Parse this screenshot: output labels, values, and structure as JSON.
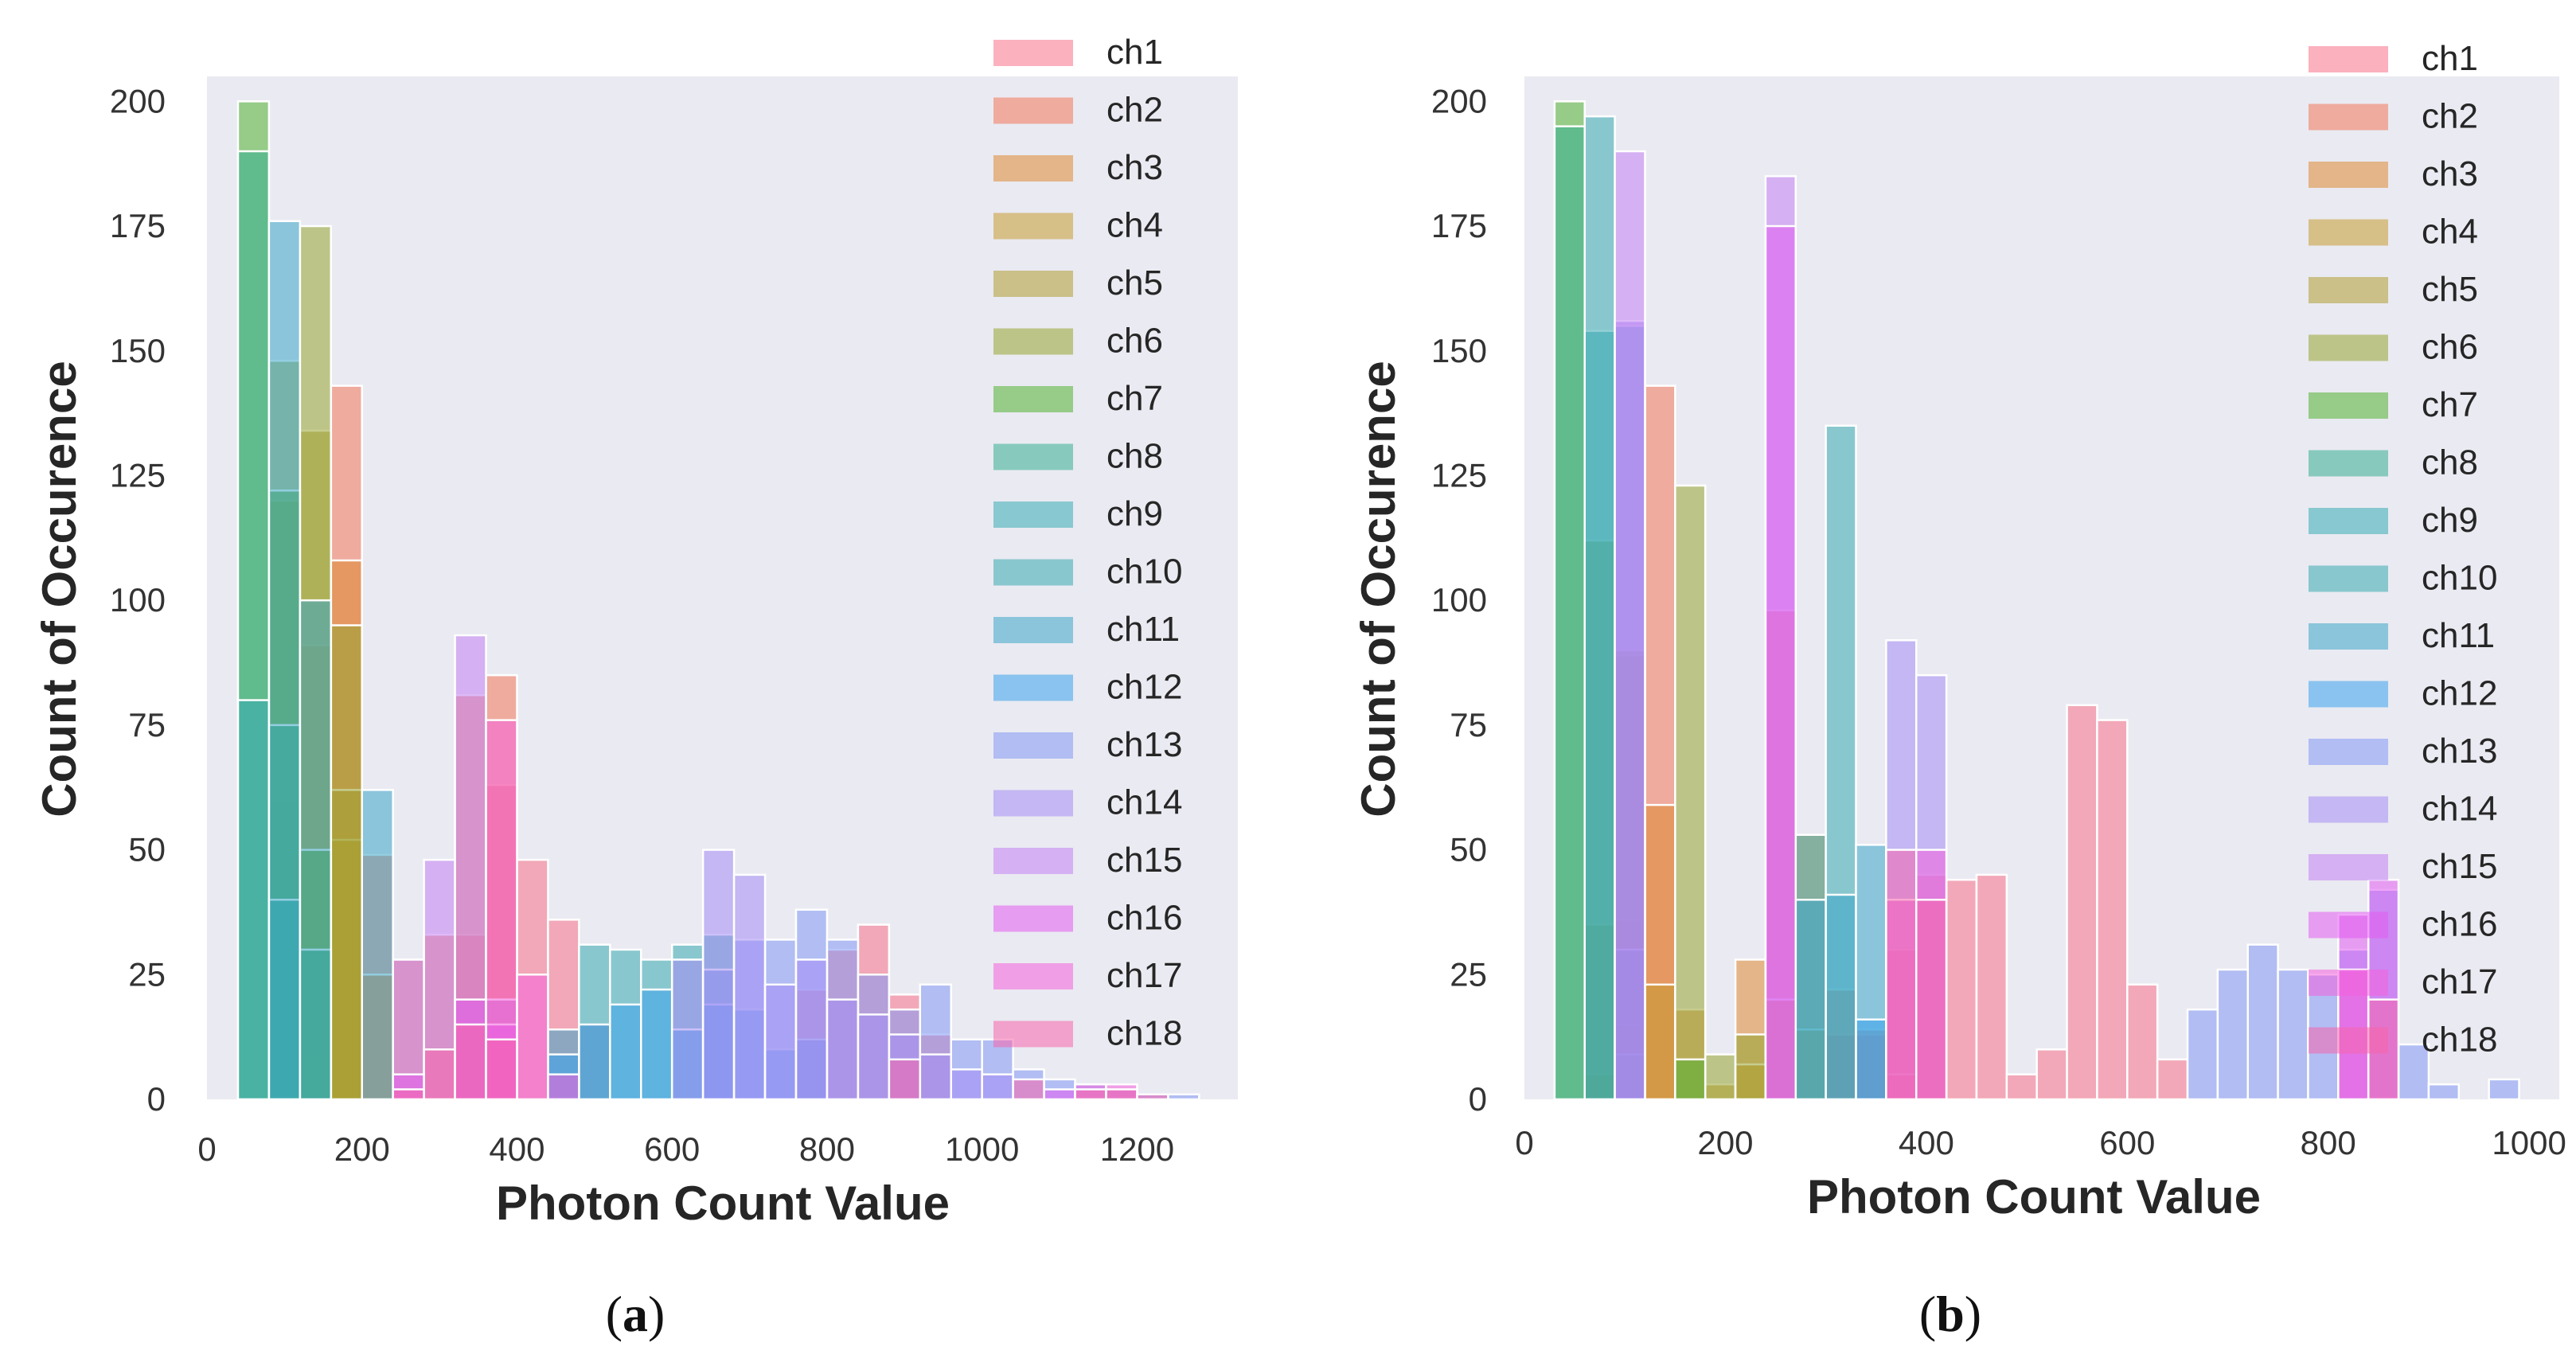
{
  "figure": {
    "panels": [
      {
        "caption_open": "(",
        "caption_letter": "a",
        "caption_close": ")"
      },
      {
        "caption_open": "(",
        "caption_letter": "b",
        "caption_close": ")"
      }
    ]
  },
  "colors": {
    "plot_background": "#eaeaf2",
    "channels": [
      "#f77189",
      "#f2775a",
      "#dc8932",
      "#c69b32",
      "#ae9d31",
      "#97a431",
      "#50b131",
      "#34ae91",
      "#37abb4",
      "#39a9b1",
      "#3aa5c8",
      "#3ba3ec",
      "#8197f4",
      "#a48cf4",
      "#c27ff3",
      "#e15bf0",
      "#f461dd",
      "#f565ab"
    ]
  },
  "chart_data": [
    {
      "type": "histogram",
      "panel": "a",
      "xlabel": "Photon Count Value",
      "ylabel": "Count of Occurence",
      "xlim": [
        0,
        1330
      ],
      "ylim": [
        0,
        205
      ],
      "xticks": [
        0,
        200,
        400,
        600,
        800,
        1000,
        1200
      ],
      "yticks": [
        0,
        25,
        50,
        75,
        100,
        125,
        150,
        175,
        200
      ],
      "bin_width": 40,
      "legend_position": "top-right",
      "grid": false,
      "series": [
        {
          "name": "ch1",
          "bins": [
            [
              320,
              33
            ],
            [
              360,
              63
            ],
            [
              400,
              48
            ],
            [
              440,
              36
            ],
            [
              480,
              15
            ],
            [
              760,
              22
            ],
            [
              800,
              30
            ],
            [
              840,
              35
            ],
            [
              880,
              21
            ],
            [
              920,
              13
            ]
          ]
        },
        {
          "name": "ch2",
          "bins": [
            [
              160,
              143
            ],
            [
              200,
              49
            ],
            [
              240,
              28
            ],
            [
              280,
              33
            ],
            [
              320,
              81
            ],
            [
              360,
              85
            ]
          ]
        },
        {
          "name": "ch3",
          "bins": [
            [
              120,
              9
            ],
            [
              160,
              108
            ],
            [
              200,
              25
            ]
          ]
        },
        {
          "name": "ch4",
          "bins": [
            [
              80,
              60
            ],
            [
              120,
              91
            ],
            [
              160,
              52
            ]
          ]
        },
        {
          "name": "ch5",
          "bins": [
            [
              80,
              120
            ],
            [
              120,
              134
            ],
            [
              160,
              62
            ]
          ]
        },
        {
          "name": "ch6",
          "bins": [
            [
              80,
              148
            ],
            [
              120,
              175
            ],
            [
              160,
              95
            ]
          ]
        },
        {
          "name": "ch7",
          "bins": [
            [
              40,
              200
            ],
            [
              80,
              122
            ],
            [
              120,
              50
            ]
          ]
        },
        {
          "name": "ch8",
          "bins": [
            [
              40,
              190
            ],
            [
              80,
              75
            ],
            [
              120,
              30
            ]
          ]
        },
        {
          "name": "ch9",
          "bins": [
            [
              40,
              80
            ],
            [
              80,
              40
            ]
          ]
        },
        {
          "name": "ch10",
          "bins": [
            [
              480,
              31
            ],
            [
              520,
              30
            ],
            [
              560,
              28
            ],
            [
              600,
              31
            ],
            [
              640,
              33
            ]
          ]
        },
        {
          "name": "ch11",
          "bins": [
            [
              80,
              176
            ],
            [
              120,
              100
            ],
            [
              200,
              62
            ],
            [
              440,
              14
            ]
          ]
        },
        {
          "name": "ch12",
          "bins": [
            [
              440,
              9
            ],
            [
              480,
              15
            ],
            [
              520,
              19
            ],
            [
              560,
              22
            ],
            [
              600,
              14
            ],
            [
              640,
              19
            ],
            [
              680,
              18
            ],
            [
              720,
              10
            ],
            [
              760,
              12
            ]
          ]
        },
        {
          "name": "ch13",
          "bins": [
            [
              640,
              26
            ],
            [
              680,
              32
            ],
            [
              720,
              32
            ],
            [
              760,
              38
            ],
            [
              800,
              32
            ],
            [
              840,
              25
            ],
            [
              880,
              18
            ],
            [
              920,
              23
            ],
            [
              960,
              12
            ],
            [
              1000,
              12
            ],
            [
              1040,
              6
            ],
            [
              1080,
              4
            ],
            [
              1120,
              3
            ],
            [
              1160,
              2
            ],
            [
              1200,
              1
            ],
            [
              1240,
              1
            ]
          ]
        },
        {
          "name": "ch14",
          "bins": [
            [
              600,
              28
            ],
            [
              640,
              50
            ],
            [
              680,
              45
            ],
            [
              720,
              23
            ],
            [
              760,
              28
            ],
            [
              800,
              20
            ],
            [
              840,
              17
            ],
            [
              880,
              13
            ],
            [
              920,
              9
            ],
            [
              960,
              6
            ],
            [
              1000,
              5
            ]
          ]
        },
        {
          "name": "ch15",
          "bins": [
            [
              240,
              28
            ],
            [
              280,
              48
            ],
            [
              320,
              93
            ],
            [
              360,
              20
            ]
          ]
        },
        {
          "name": "ch16",
          "bins": [
            [
              240,
              5
            ],
            [
              320,
              20
            ],
            [
              360,
              15
            ],
            [
              1080,
              2
            ]
          ]
        },
        {
          "name": "ch17",
          "bins": [
            [
              360,
              76
            ],
            [
              400,
              25
            ],
            [
              440,
              5
            ],
            [
              1120,
              3
            ],
            [
              1160,
              3
            ]
          ]
        },
        {
          "name": "ch18",
          "bins": [
            [
              240,
              2
            ],
            [
              280,
              10
            ],
            [
              320,
              15
            ],
            [
              360,
              12
            ],
            [
              880,
              8
            ],
            [
              1040,
              4
            ],
            [
              1120,
              2
            ],
            [
              1160,
              2
            ],
            [
              1200,
              1
            ]
          ]
        }
      ],
      "legend": [
        "ch1",
        "ch2",
        "ch3",
        "ch4",
        "ch5",
        "ch6",
        "ch7",
        "ch8",
        "ch9",
        "ch10",
        "ch11",
        "ch12",
        "ch13",
        "ch14",
        "ch15",
        "ch16",
        "ch17",
        "ch18"
      ]
    },
    {
      "type": "histogram",
      "panel": "b",
      "xlabel": "Photon Count Value",
      "ylabel": "Count of Occurence",
      "xlim": [
        0,
        1030
      ],
      "ylim": [
        0,
        205
      ],
      "xticks": [
        0,
        200,
        400,
        600,
        800,
        1000
      ],
      "yticks": [
        0,
        25,
        50,
        75,
        100,
        125,
        150,
        175,
        200
      ],
      "bin_width": 30,
      "legend_position": "top-right",
      "grid": false,
      "series": [
        {
          "name": "ch1",
          "bins": [
            [
              300,
              13
            ],
            [
              330,
              13
            ],
            [
              360,
              30
            ],
            [
              390,
              45
            ],
            [
              420,
              44
            ],
            [
              450,
              45
            ],
            [
              480,
              5
            ],
            [
              510,
              10
            ],
            [
              540,
              79
            ],
            [
              570,
              76
            ],
            [
              600,
              23
            ],
            [
              630,
              8
            ]
          ]
        },
        {
          "name": "ch2",
          "bins": [
            [
              90,
              36
            ],
            [
              120,
              143
            ],
            [
              240,
              98
            ],
            [
              300,
              22
            ],
            [
              330,
              14
            ],
            [
              360,
              5
            ]
          ]
        },
        {
          "name": "ch3",
          "bins": [
            [
              120,
              59
            ],
            [
              150,
              18
            ],
            [
              210,
              28
            ],
            [
              240,
              20
            ],
            [
              270,
              53
            ]
          ]
        },
        {
          "name": "ch4",
          "bins": [
            [
              60,
              5
            ],
            [
              90,
              15
            ],
            [
              120,
              23
            ],
            [
              180,
              3
            ],
            [
              210,
              7
            ],
            [
              270,
              14
            ]
          ]
        },
        {
          "name": "ch5",
          "bins": [
            [
              60,
              35
            ],
            [
              90,
              89
            ]
          ]
        },
        {
          "name": "ch6",
          "bins": [
            [
              60,
              112
            ],
            [
              90,
              90
            ],
            [
              150,
              123
            ],
            [
              180,
              9
            ],
            [
              210,
              13
            ]
          ]
        },
        {
          "name": "ch7",
          "bins": [
            [
              30,
              200
            ],
            [
              150,
              8
            ]
          ]
        },
        {
          "name": "ch8",
          "bins": [
            [
              30,
              195
            ],
            [
              90,
              9
            ]
          ]
        },
        {
          "name": "ch9",
          "bins": [
            [
              60,
              154
            ],
            [
              90,
              30
            ]
          ]
        },
        {
          "name": "ch10",
          "bins": [
            [
              60,
              197
            ],
            [
              270,
              53
            ],
            [
              300,
              135
            ]
          ]
        },
        {
          "name": "ch11",
          "bins": [
            [
              90,
              155
            ],
            [
              270,
              40
            ],
            [
              300,
              41
            ],
            [
              330,
              51
            ]
          ]
        },
        {
          "name": "ch12",
          "bins": [
            [
              330,
              16
            ]
          ]
        },
        {
          "name": "ch13",
          "bins": [
            [
              660,
              18
            ],
            [
              690,
              26
            ],
            [
              720,
              31
            ],
            [
              750,
              26
            ],
            [
              780,
              25
            ],
            [
              810,
              30
            ],
            [
              840,
              42
            ],
            [
              870,
              11
            ],
            [
              900,
              3
            ],
            [
              960,
              4
            ]
          ]
        },
        {
          "name": "ch14",
          "bins": [
            [
              90,
              156
            ],
            [
              360,
              92
            ],
            [
              390,
              85
            ]
          ]
        },
        {
          "name": "ch15",
          "bins": [
            [
              90,
              190
            ],
            [
              240,
              185
            ]
          ]
        },
        {
          "name": "ch16",
          "bins": [
            [
              240,
              175
            ],
            [
              810,
              37
            ],
            [
              840,
              44
            ]
          ]
        },
        {
          "name": "ch17",
          "bins": [
            [
              360,
              40
            ],
            [
              390,
              50
            ],
            [
              810,
              26
            ]
          ]
        },
        {
          "name": "ch18",
          "bins": [
            [
              360,
              50
            ],
            [
              390,
              40
            ],
            [
              840,
              20
            ]
          ]
        }
      ],
      "legend": [
        "ch1",
        "ch2",
        "ch3",
        "ch4",
        "ch5",
        "ch6",
        "ch7",
        "ch8",
        "ch9",
        "ch10",
        "ch11",
        "ch12",
        "ch13",
        "ch14",
        "ch15",
        "ch16",
        "ch17",
        "ch18"
      ]
    }
  ]
}
